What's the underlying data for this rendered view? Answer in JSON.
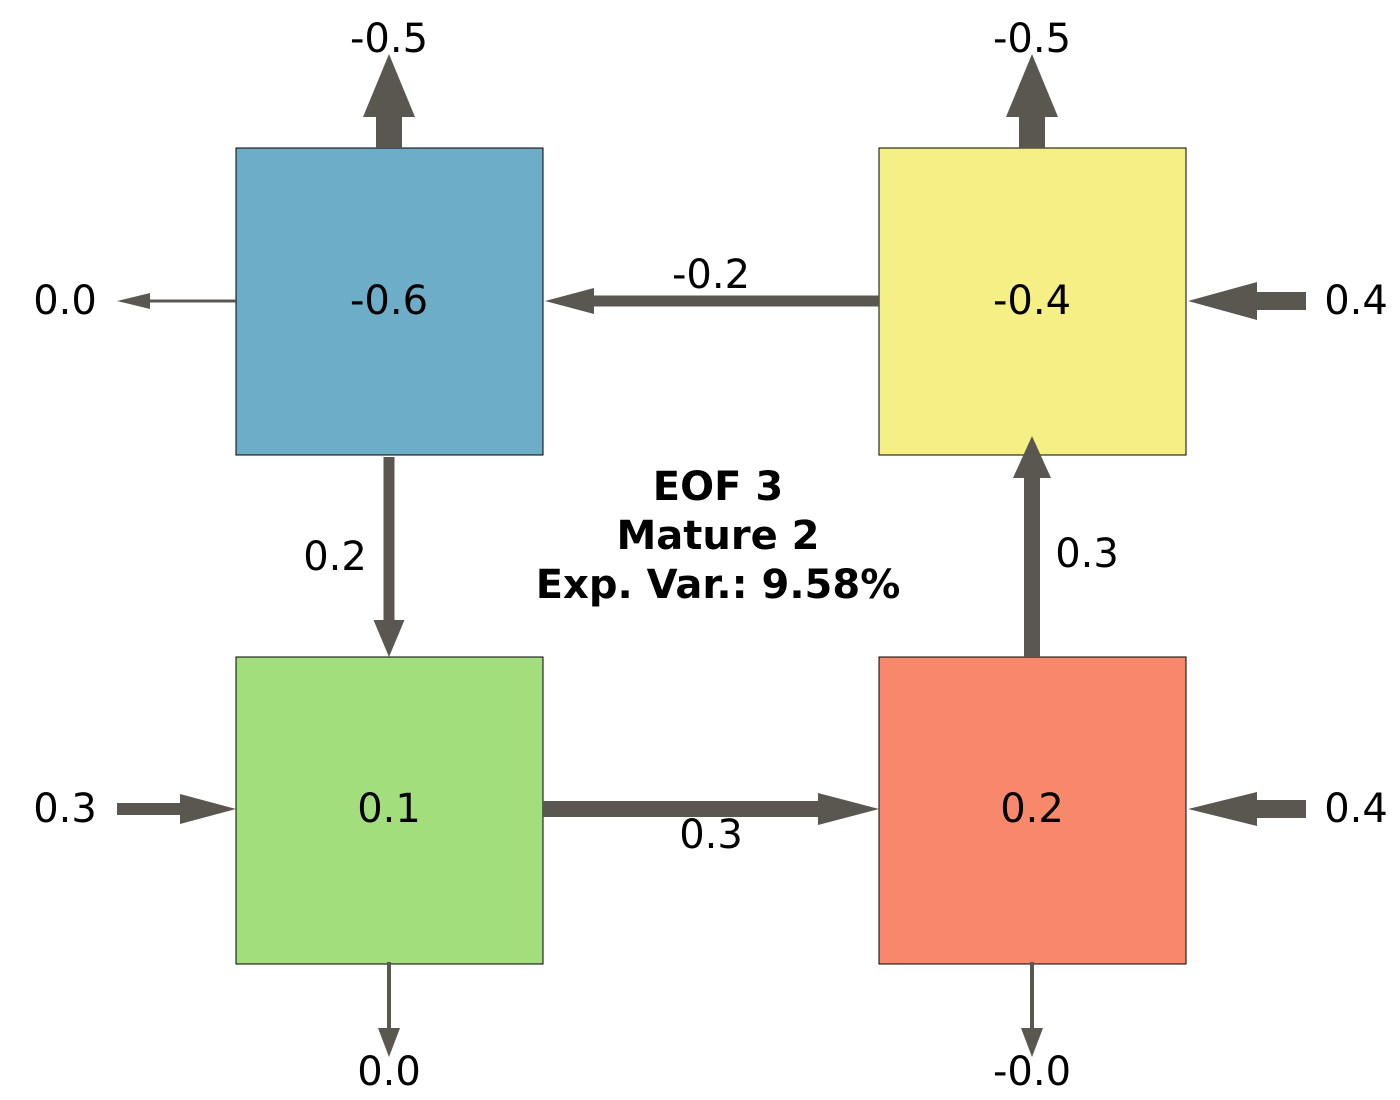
{
  "colors": {
    "arrow": "#5a5751",
    "box_blue": "#6eadc7",
    "box_yellow": "#f6ef86",
    "box_green": "#a2de7b",
    "box_red": "#f8886b"
  },
  "title": {
    "line1": "EOF 3",
    "line2": "Mature 2",
    "line3": "Exp. Var.: 9.58%"
  },
  "boxes": {
    "top_left": {
      "value": "-0.6",
      "color": "#6eadc7"
    },
    "top_right": {
      "value": "-0.4",
      "color": "#f6ef86"
    },
    "bottom_left": {
      "value": "0.1",
      "color": "#a2de7b"
    },
    "bottom_right": {
      "value": "0.2",
      "color": "#f8886b"
    }
  },
  "flows": {
    "top_left_up": "-0.5",
    "top_right_up": "-0.5",
    "top_left_left": "0.0",
    "top_right_right": "0.4",
    "bottom_left_left": "0.3",
    "bottom_right_right": "0.4",
    "bottom_left_down": "0.0",
    "bottom_right_down": "-0.0",
    "top_right_to_top_left": "-0.2",
    "top_left_to_bottom_left": "0.2",
    "bottom_left_to_bottom_right": "0.3",
    "bottom_right_to_top_right": "0.3"
  }
}
